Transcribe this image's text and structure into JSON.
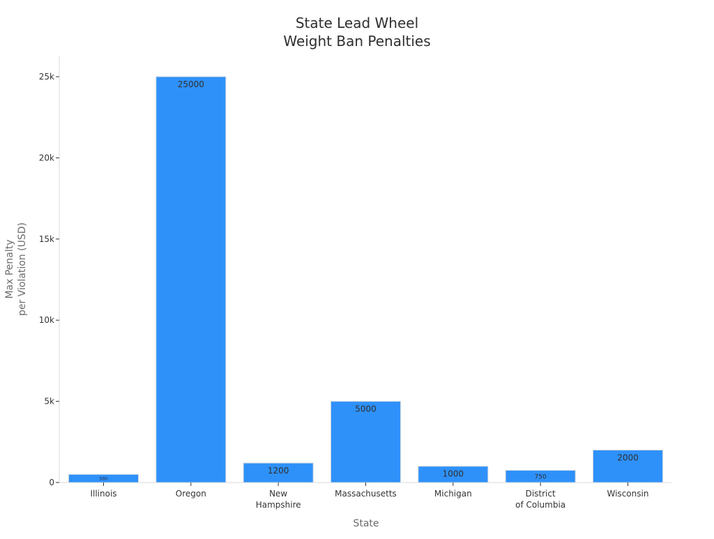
{
  "chart_data": {
    "type": "bar",
    "title_lines": [
      "State Lead Wheel",
      "Weight Ban Penalties"
    ],
    "xlabel": "State",
    "ylabel_lines": [
      "Max Penalty",
      "per Violation (USD)"
    ],
    "categories": [
      [
        "Illinois"
      ],
      [
        "Oregon"
      ],
      [
        "New",
        "Hampshire"
      ],
      [
        "Massachusetts"
      ],
      [
        "Michigan"
      ],
      [
        "District",
        "of Columbia"
      ],
      [
        "Wisconsin"
      ]
    ],
    "values": [
      500,
      25000,
      1200,
      5000,
      1000,
      750,
      2000
    ],
    "data_labels": [
      "500",
      "25000",
      "1200",
      "5000",
      "1000",
      "750",
      "2000"
    ],
    "ylim": [
      0,
      26000
    ],
    "yticks": [
      0,
      5000,
      10000,
      15000,
      20000,
      25000
    ],
    "ytick_labels": [
      "0",
      "5k",
      "10k",
      "15k",
      "20k",
      "25k"
    ],
    "bar_color": "#2e91fa",
    "bar_edge_color": "#cfd6df",
    "grid": false,
    "legend": "none"
  }
}
